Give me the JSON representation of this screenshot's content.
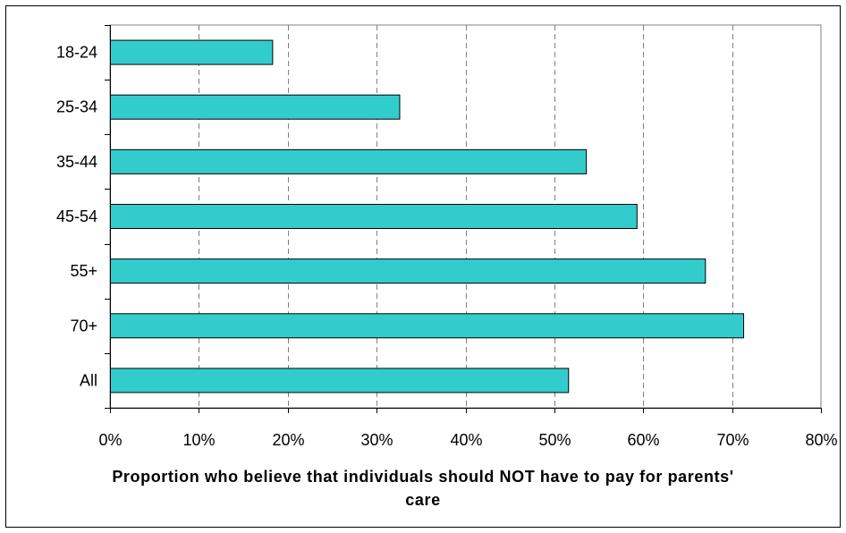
{
  "chart_data": {
    "type": "bar",
    "orientation": "horizontal",
    "categories": [
      "18-24",
      "25-34",
      "35-44",
      "45-54",
      "55+",
      "70+",
      "All"
    ],
    "values": [
      18.3,
      32.6,
      53.6,
      59.3,
      67.0,
      71.3,
      51.6
    ],
    "value_unit": "%",
    "xlim": [
      0,
      80
    ],
    "x_ticks": [
      "0%",
      "10%",
      "20%",
      "30%",
      "40%",
      "50%",
      "60%",
      "70%",
      "80%"
    ],
    "xlabel_line1": "Proportion who believe that individuals should NOT have to pay for parents'",
    "xlabel_line2": "care",
    "ylabel": "",
    "grid": "vertical dashed",
    "bar_color": "#33CCCC",
    "bar_border_color": "#000000",
    "legend": "none"
  }
}
